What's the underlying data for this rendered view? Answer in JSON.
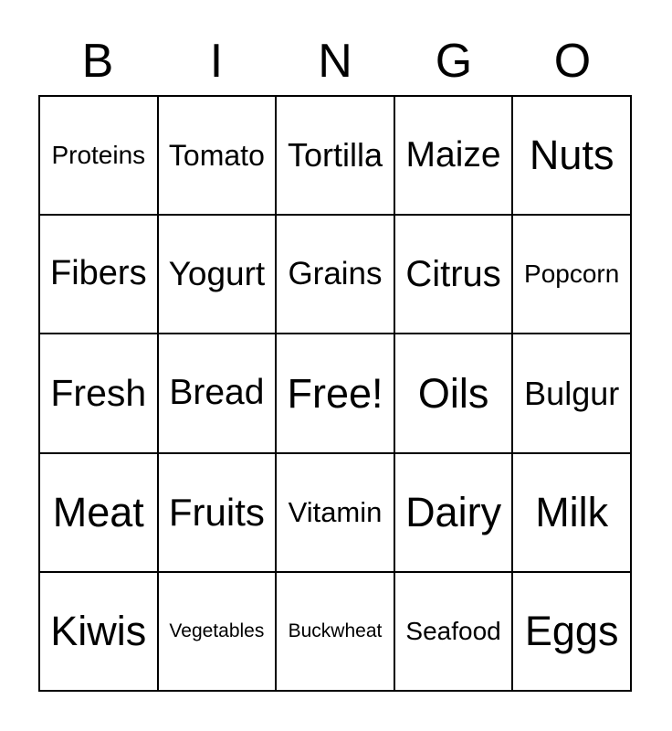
{
  "title": {
    "letters": [
      "B",
      "I",
      "N",
      "G",
      "O"
    ]
  },
  "card": {
    "free_space_label": "Free!",
    "rows": [
      [
        "Proteins",
        "Tomato",
        "Tortilla",
        "Maize",
        "Nuts"
      ],
      [
        "Fibers",
        "Yogurt",
        "Grains",
        "Citrus",
        "Popcorn"
      ],
      [
        "Fresh",
        "Bread",
        "Free!",
        "Oils",
        "Bulgur"
      ],
      [
        "Meat",
        "Fruits",
        "Vitamin",
        "Dairy",
        "Milk"
      ],
      [
        "Kiwis",
        "Vegetables",
        "Buckwheat",
        "Seafood",
        "Eggs"
      ]
    ]
  },
  "colors": {
    "background": "#ffffff",
    "text": "#000000",
    "border": "#000000"
  }
}
